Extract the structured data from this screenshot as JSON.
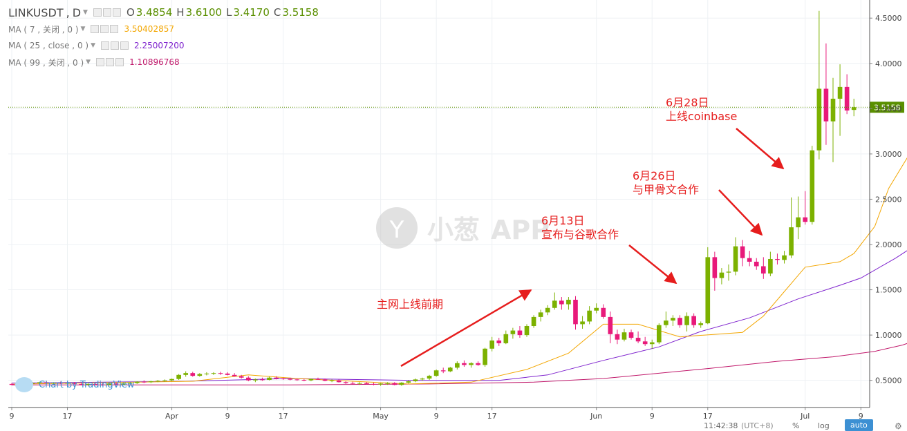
{
  "header": {
    "symbol": "LINKUSDT",
    "sep": ",",
    "interval": "D",
    "open_label": "O",
    "open": "3.4854",
    "high_label": "H",
    "high": "3.6100",
    "low_label": "L",
    "low": "3.4170",
    "close_label": "C",
    "close": "3.5158"
  },
  "indicators": [
    {
      "label": "MA ( 7 , 关闭 , 0 )",
      "value": "3.50402857",
      "color": "#f3a600"
    },
    {
      "label": "MA ( 25 , close , 0 )",
      "value": "2.25007200",
      "color": "#7e22ce"
    },
    {
      "label": "MA ( 99 , 关闭 , 0 )",
      "value": "1.10896768",
      "color": "#c0176a"
    }
  ],
  "watermark": {
    "cn": "小葱",
    "latin": "APP"
  },
  "branding": {
    "text": "Chart by TradingView"
  },
  "footer": {
    "time": "11:42:38",
    "timezone": "(UTC+8)",
    "percent": "%",
    "log": "log",
    "auto": "auto"
  },
  "colors": {
    "up": "#7cb100",
    "down": "#e8197a",
    "annotation": "#e61d1d",
    "price_line": "#5a8f00",
    "ma7": "#f3a600",
    "ma25": "#7e22ce",
    "ma99": "#c0176a"
  },
  "chart_data": {
    "type": "candlestick",
    "symbol": "LINKUSDT",
    "interval": "D",
    "date_range": [
      "2019-03-09",
      "2019-07-05"
    ],
    "ylim": [
      0.2,
      4.7
    ],
    "y_ticks": [
      "0.5000",
      "1.0000",
      "1.5000",
      "2.0000",
      "2.5000",
      "3.0000",
      "3.5000",
      "4.0000",
      "4.5000"
    ],
    "x_ticks": [
      "9",
      "17",
      "Apr",
      "9",
      "17",
      "May",
      "9",
      "17",
      "Jun",
      "9",
      "17",
      "Jul",
      "9"
    ],
    "last_price": 3.5158,
    "last_price_label": "3.5158",
    "grid": true,
    "candles": [
      [
        0.46,
        0.47,
        0.445,
        0.45
      ],
      [
        0.45,
        0.485,
        0.44,
        0.48
      ],
      [
        0.48,
        0.49,
        0.465,
        0.47
      ],
      [
        0.47,
        0.48,
        0.46,
        0.47
      ],
      [
        0.47,
        0.485,
        0.46,
        0.48
      ],
      [
        0.48,
        0.49,
        0.465,
        0.47
      ],
      [
        0.47,
        0.48,
        0.46,
        0.475
      ],
      [
        0.475,
        0.485,
        0.46,
        0.465
      ],
      [
        0.465,
        0.475,
        0.45,
        0.47
      ],
      [
        0.47,
        0.48,
        0.455,
        0.46
      ],
      [
        0.46,
        0.47,
        0.445,
        0.45
      ],
      [
        0.45,
        0.465,
        0.44,
        0.46
      ],
      [
        0.46,
        0.47,
        0.448,
        0.455
      ],
      [
        0.455,
        0.465,
        0.44,
        0.45
      ],
      [
        0.45,
        0.47,
        0.445,
        0.465
      ],
      [
        0.465,
        0.475,
        0.45,
        0.455
      ],
      [
        0.455,
        0.47,
        0.445,
        0.465
      ],
      [
        0.465,
        0.48,
        0.455,
        0.47
      ],
      [
        0.47,
        0.49,
        0.46,
        0.485
      ],
      [
        0.485,
        0.5,
        0.47,
        0.48
      ],
      [
        0.48,
        0.495,
        0.47,
        0.49
      ],
      [
        0.49,
        0.505,
        0.48,
        0.495
      ],
      [
        0.495,
        0.51,
        0.485,
        0.5
      ],
      [
        0.5,
        0.52,
        0.49,
        0.515
      ],
      [
        0.515,
        0.57,
        0.505,
        0.56
      ],
      [
        0.56,
        0.6,
        0.54,
        0.58
      ],
      [
        0.58,
        0.595,
        0.54,
        0.55
      ],
      [
        0.55,
        0.58,
        0.54,
        0.57
      ],
      [
        0.57,
        0.59,
        0.555,
        0.575
      ],
      [
        0.575,
        0.59,
        0.56,
        0.58
      ],
      [
        0.58,
        0.595,
        0.56,
        0.575
      ],
      [
        0.575,
        0.59,
        0.555,
        0.56
      ],
      [
        0.56,
        0.58,
        0.54,
        0.545
      ],
      [
        0.545,
        0.56,
        0.52,
        0.53
      ],
      [
        0.53,
        0.545,
        0.49,
        0.5
      ],
      [
        0.5,
        0.52,
        0.48,
        0.51
      ],
      [
        0.51,
        0.53,
        0.495,
        0.505
      ],
      [
        0.505,
        0.54,
        0.5,
        0.53
      ],
      [
        0.53,
        0.545,
        0.51,
        0.52
      ],
      [
        0.52,
        0.53,
        0.505,
        0.515
      ],
      [
        0.515,
        0.53,
        0.5,
        0.51
      ],
      [
        0.51,
        0.52,
        0.495,
        0.505
      ],
      [
        0.505,
        0.515,
        0.49,
        0.5
      ],
      [
        0.5,
        0.52,
        0.49,
        0.515
      ],
      [
        0.515,
        0.53,
        0.505,
        0.51
      ],
      [
        0.51,
        0.52,
        0.49,
        0.495
      ],
      [
        0.495,
        0.51,
        0.48,
        0.5
      ],
      [
        0.5,
        0.51,
        0.475,
        0.48
      ],
      [
        0.48,
        0.49,
        0.46,
        0.47
      ],
      [
        0.47,
        0.485,
        0.455,
        0.465
      ],
      [
        0.465,
        0.48,
        0.45,
        0.47
      ],
      [
        0.47,
        0.48,
        0.455,
        0.46
      ],
      [
        0.46,
        0.475,
        0.445,
        0.455
      ],
      [
        0.455,
        0.47,
        0.44,
        0.465
      ],
      [
        0.465,
        0.48,
        0.45,
        0.47
      ],
      [
        0.47,
        0.48,
        0.445,
        0.45
      ],
      [
        0.45,
        0.48,
        0.44,
        0.475
      ],
      [
        0.475,
        0.5,
        0.465,
        0.49
      ],
      [
        0.49,
        0.52,
        0.48,
        0.51
      ],
      [
        0.51,
        0.53,
        0.495,
        0.52
      ],
      [
        0.52,
        0.56,
        0.505,
        0.55
      ],
      [
        0.55,
        0.62,
        0.54,
        0.61
      ],
      [
        0.61,
        0.64,
        0.58,
        0.6
      ],
      [
        0.6,
        0.65,
        0.59,
        0.64
      ],
      [
        0.64,
        0.71,
        0.62,
        0.69
      ],
      [
        0.69,
        0.72,
        0.65,
        0.67
      ],
      [
        0.67,
        0.7,
        0.64,
        0.69
      ],
      [
        0.69,
        0.71,
        0.66,
        0.67
      ],
      [
        0.67,
        0.86,
        0.65,
        0.85
      ],
      [
        0.85,
        0.98,
        0.82,
        0.94
      ],
      [
        0.94,
        0.97,
        0.88,
        0.91
      ],
      [
        0.91,
        1.05,
        0.9,
        1.01
      ],
      [
        1.01,
        1.08,
        0.96,
        1.05
      ],
      [
        1.05,
        1.1,
        0.97,
        1.0
      ],
      [
        1.0,
        1.12,
        0.98,
        1.1
      ],
      [
        1.1,
        1.22,
        1.08,
        1.2
      ],
      [
        1.2,
        1.28,
        1.15,
        1.25
      ],
      [
        1.25,
        1.33,
        1.22,
        1.3
      ],
      [
        1.3,
        1.47,
        1.28,
        1.38
      ],
      [
        1.38,
        1.42,
        1.28,
        1.34
      ],
      [
        1.34,
        1.42,
        1.28,
        1.39
      ],
      [
        1.39,
        1.43,
        1.06,
        1.12
      ],
      [
        1.12,
        1.21,
        1.07,
        1.15
      ],
      [
        1.15,
        1.32,
        1.12,
        1.27
      ],
      [
        1.27,
        1.35,
        1.24,
        1.3
      ],
      [
        1.3,
        1.34,
        1.18,
        1.2
      ],
      [
        1.2,
        1.26,
        0.91,
        1.01
      ],
      [
        1.01,
        1.06,
        0.9,
        0.95
      ],
      [
        0.95,
        1.07,
        0.93,
        1.03
      ],
      [
        1.03,
        1.06,
        0.95,
        0.97
      ],
      [
        0.97,
        1.04,
        0.91,
        0.93
      ],
      [
        0.93,
        0.98,
        0.88,
        0.9
      ],
      [
        0.9,
        0.95,
        0.85,
        0.92
      ],
      [
        0.92,
        1.13,
        0.9,
        1.11
      ],
      [
        1.11,
        1.26,
        1.08,
        1.16
      ],
      [
        1.16,
        1.22,
        1.1,
        1.19
      ],
      [
        1.19,
        1.22,
        1.08,
        1.11
      ],
      [
        1.11,
        1.25,
        1.04,
        1.21
      ],
      [
        1.21,
        1.24,
        1.08,
        1.11
      ],
      [
        1.11,
        1.15,
        1.08,
        1.13
      ],
      [
        1.13,
        1.97,
        1.12,
        1.86
      ],
      [
        1.86,
        1.92,
        1.49,
        1.63
      ],
      [
        1.63,
        1.74,
        1.56,
        1.69
      ],
      [
        1.69,
        1.78,
        1.6,
        1.7
      ],
      [
        1.7,
        2.08,
        1.66,
        1.98
      ],
      [
        1.98,
        2.05,
        1.76,
        1.85
      ],
      [
        1.85,
        1.93,
        1.76,
        1.81
      ],
      [
        1.81,
        1.85,
        1.72,
        1.76
      ],
      [
        1.76,
        1.86,
        1.62,
        1.68
      ],
      [
        1.68,
        1.92,
        1.65,
        1.84
      ],
      [
        1.84,
        1.9,
        1.78,
        1.83
      ],
      [
        1.83,
        1.93,
        1.79,
        1.88
      ],
      [
        1.88,
        2.52,
        1.85,
        2.19
      ],
      [
        2.19,
        2.53,
        2.06,
        2.3
      ],
      [
        2.3,
        2.59,
        2.22,
        2.25
      ],
      [
        2.25,
        3.09,
        2.22,
        3.04
      ],
      [
        3.04,
        4.58,
        2.94,
        3.72
      ],
      [
        3.72,
        4.22,
        3.1,
        3.36
      ],
      [
        3.36,
        3.84,
        2.91,
        3.61
      ],
      [
        3.61,
        3.99,
        3.2,
        3.74
      ],
      [
        3.74,
        3.88,
        3.44,
        3.48
      ],
      [
        3.486,
        3.61,
        3.417,
        3.516
      ]
    ],
    "ma7": [
      [
        0,
        0.458
      ],
      [
        26,
        0.49
      ],
      [
        34,
        0.56
      ],
      [
        41,
        0.52
      ],
      [
        57,
        0.46
      ],
      [
        66,
        0.48
      ],
      [
        74,
        0.62
      ],
      [
        80,
        0.8
      ],
      [
        85,
        1.12
      ],
      [
        90,
        1.12
      ],
      [
        96,
        0.98
      ],
      [
        105,
        1.03
      ],
      [
        108,
        1.21
      ],
      [
        114,
        1.75
      ],
      [
        119,
        1.81
      ],
      [
        121,
        1.9
      ],
      [
        124,
        2.2
      ],
      [
        126,
        2.62
      ],
      [
        129,
        3.0
      ],
      [
        131,
        3.3
      ],
      [
        135,
        3.5
      ]
    ],
    "ma25": [
      [
        0,
        0.47
      ],
      [
        25,
        0.49
      ],
      [
        40,
        0.52
      ],
      [
        58,
        0.5
      ],
      [
        70,
        0.5
      ],
      [
        77,
        0.56
      ],
      [
        85,
        0.72
      ],
      [
        93,
        0.87
      ],
      [
        99,
        1.04
      ],
      [
        106,
        1.19
      ],
      [
        113,
        1.4
      ],
      [
        119,
        1.55
      ],
      [
        122,
        1.63
      ],
      [
        127,
        1.85
      ],
      [
        130,
        2.0
      ],
      [
        135,
        2.25
      ]
    ],
    "ma99": [
      [
        0,
        0.45
      ],
      [
        40,
        0.45
      ],
      [
        60,
        0.46
      ],
      [
        75,
        0.48
      ],
      [
        85,
        0.52
      ],
      [
        100,
        0.63
      ],
      [
        110,
        0.71
      ],
      [
        118,
        0.76
      ],
      [
        124,
        0.82
      ],
      [
        128,
        0.89
      ],
      [
        131,
        0.97
      ],
      [
        135,
        1.11
      ]
    ],
    "annotations": [
      {
        "lines": [
          "主网上线前期"
        ]
      },
      {
        "lines": [
          "6月13日",
          "宣布与谷歌合作"
        ]
      },
      {
        "lines": [
          "6月26日",
          "与甲骨文合作"
        ]
      },
      {
        "lines": [
          "6月28日",
          "上线coinbase"
        ]
      }
    ]
  }
}
